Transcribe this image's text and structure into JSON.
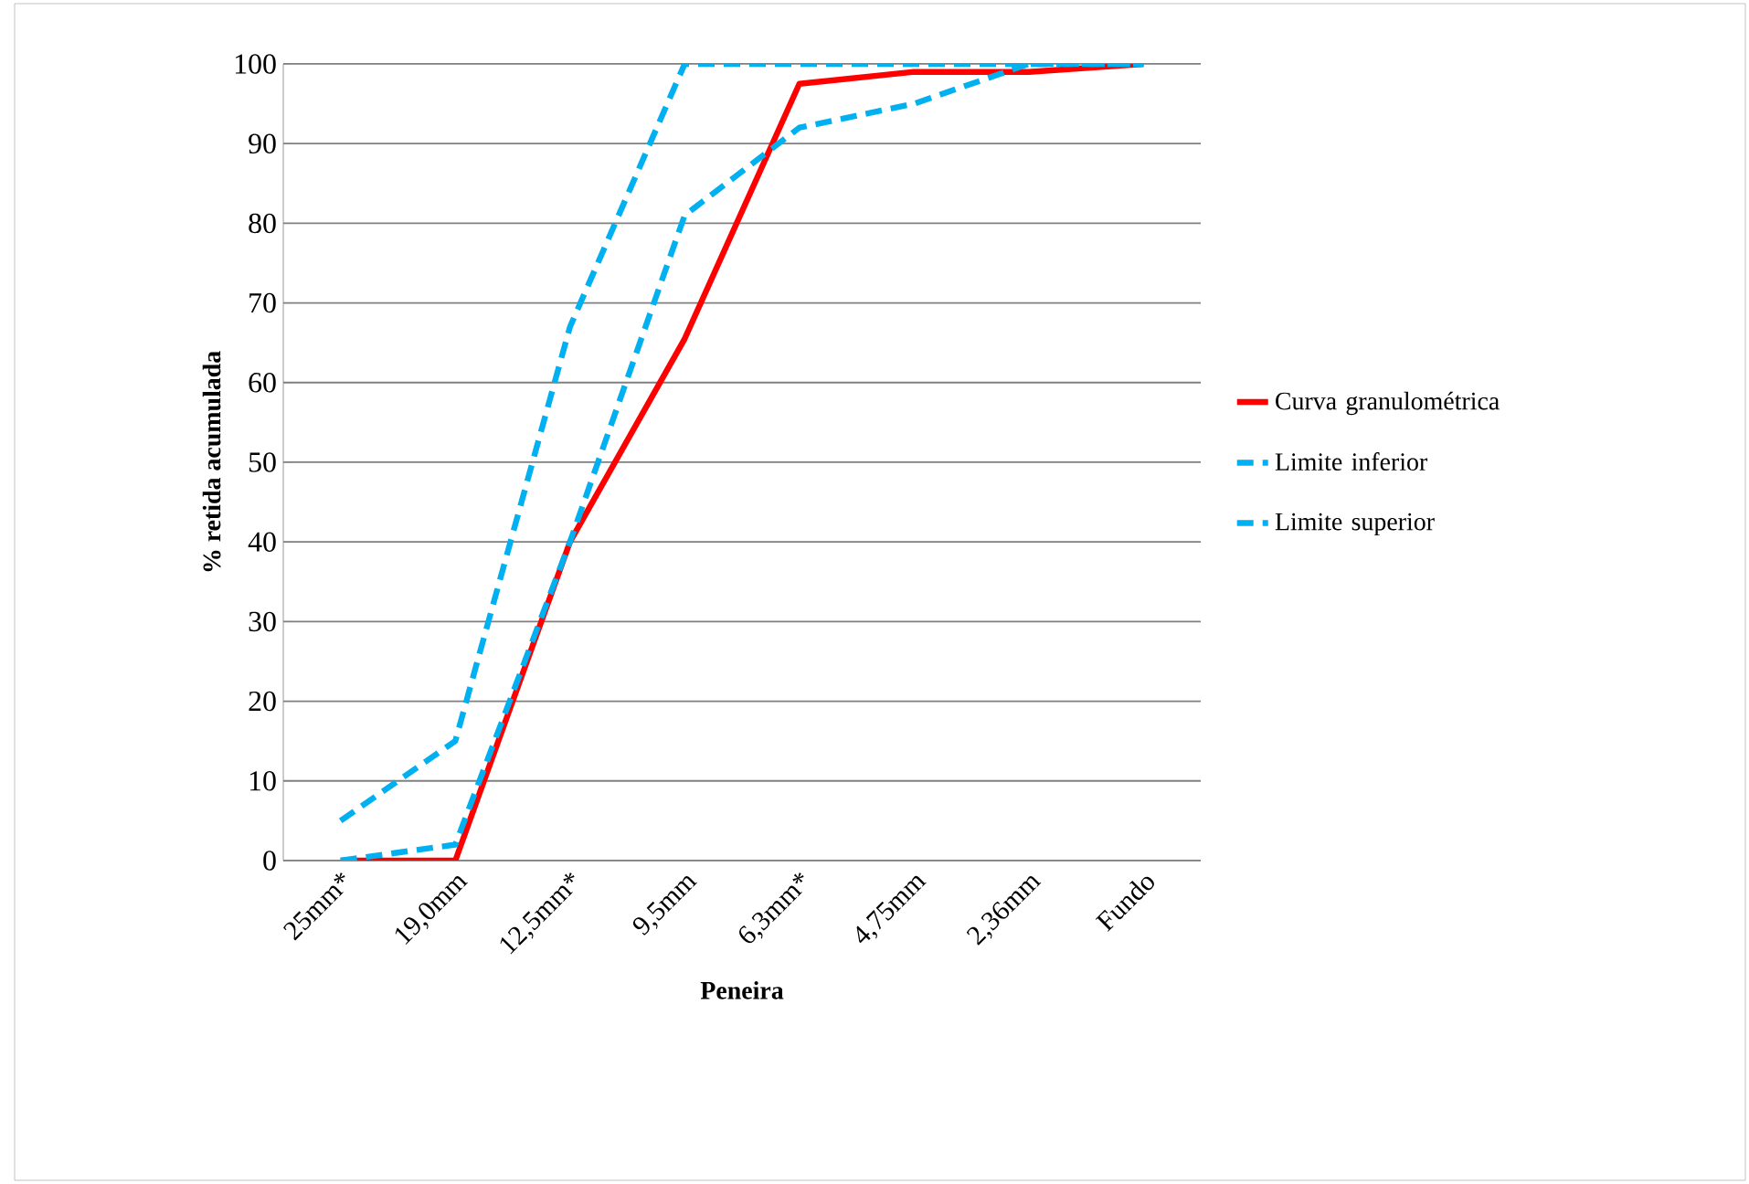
{
  "chart_data": {
    "type": "line",
    "xlabel": "Peneira",
    "ylabel": "% retida acumulada",
    "categories": [
      "25mm*",
      "19,0mm",
      "12,5mm*",
      "9,5mm",
      "6,3mm*",
      "4,75mm",
      "2,36mm",
      "Fundo"
    ],
    "series": [
      {
        "name": "Curva granulométrica",
        "color": "#ff0000",
        "line_style": "solid",
        "values": [
          0,
          0,
          40,
          65.5,
          97.5,
          99,
          99,
          100
        ]
      },
      {
        "name": "Limite inferior",
        "color": "#00b0f0",
        "line_style": "dashed",
        "values": [
          0,
          2,
          40,
          81,
          92,
          95,
          100,
          100
        ]
      },
      {
        "name": "Limite superior",
        "color": "#00b0f0",
        "line_style": "dashed",
        "values": [
          5,
          15,
          67,
          100,
          100,
          100,
          100,
          100
        ]
      }
    ],
    "ylim": [
      0,
      100
    ],
    "yticks": [
      0,
      10,
      20,
      30,
      40,
      50,
      60,
      70,
      80,
      90,
      100
    ],
    "grid": "y",
    "legend": "right",
    "marker": "none"
  }
}
